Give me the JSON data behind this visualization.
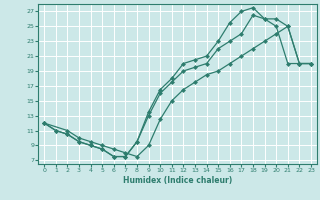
{
  "xlabel": "Humidex (Indice chaleur)",
  "bg_color": "#cce8e8",
  "grid_color": "#ffffff",
  "line_color": "#2e7d6e",
  "xlim": [
    -0.5,
    23.5
  ],
  "ylim": [
    6.5,
    28
  ],
  "xticks": [
    0,
    1,
    2,
    3,
    4,
    5,
    6,
    7,
    8,
    9,
    10,
    11,
    12,
    13,
    14,
    15,
    16,
    17,
    18,
    19,
    20,
    21,
    22,
    23
  ],
  "yticks": [
    7,
    9,
    11,
    13,
    15,
    17,
    19,
    21,
    23,
    25,
    27
  ],
  "line1_x": [
    0,
    1,
    2,
    3,
    4,
    5,
    6,
    7,
    8,
    9,
    10,
    11,
    12,
    13,
    14,
    15,
    16,
    17,
    18,
    19,
    20,
    21,
    22,
    23
  ],
  "line1_y": [
    12,
    11,
    10.5,
    9.5,
    9,
    8.5,
    7.5,
    7.5,
    9.5,
    13.5,
    16.5,
    18,
    20,
    20.5,
    21,
    23,
    25.5,
    27,
    27.5,
    26,
    25,
    20,
    20,
    20
  ],
  "line2_x": [
    0,
    1,
    2,
    3,
    4,
    5,
    6,
    7,
    8,
    9,
    10,
    11,
    12,
    13,
    14,
    15,
    16,
    17,
    18,
    19,
    20,
    21,
    22,
    23
  ],
  "line2_y": [
    12,
    11,
    10.5,
    9.5,
    9,
    8.5,
    7.5,
    7.5,
    9.5,
    13,
    16,
    17.5,
    19,
    19.5,
    20,
    22,
    23,
    24,
    26.5,
    26,
    26,
    25,
    20,
    20
  ],
  "line3_x": [
    0,
    2,
    3,
    4,
    5,
    6,
    7,
    8,
    9,
    10,
    11,
    12,
    13,
    14,
    15,
    16,
    17,
    18,
    19,
    20,
    21,
    22,
    23
  ],
  "line3_y": [
    12,
    11,
    10,
    9.5,
    9,
    8.5,
    8,
    7.5,
    9,
    12.5,
    15,
    16.5,
    17.5,
    18.5,
    19,
    20,
    21,
    22,
    23,
    24,
    25,
    20,
    20
  ]
}
